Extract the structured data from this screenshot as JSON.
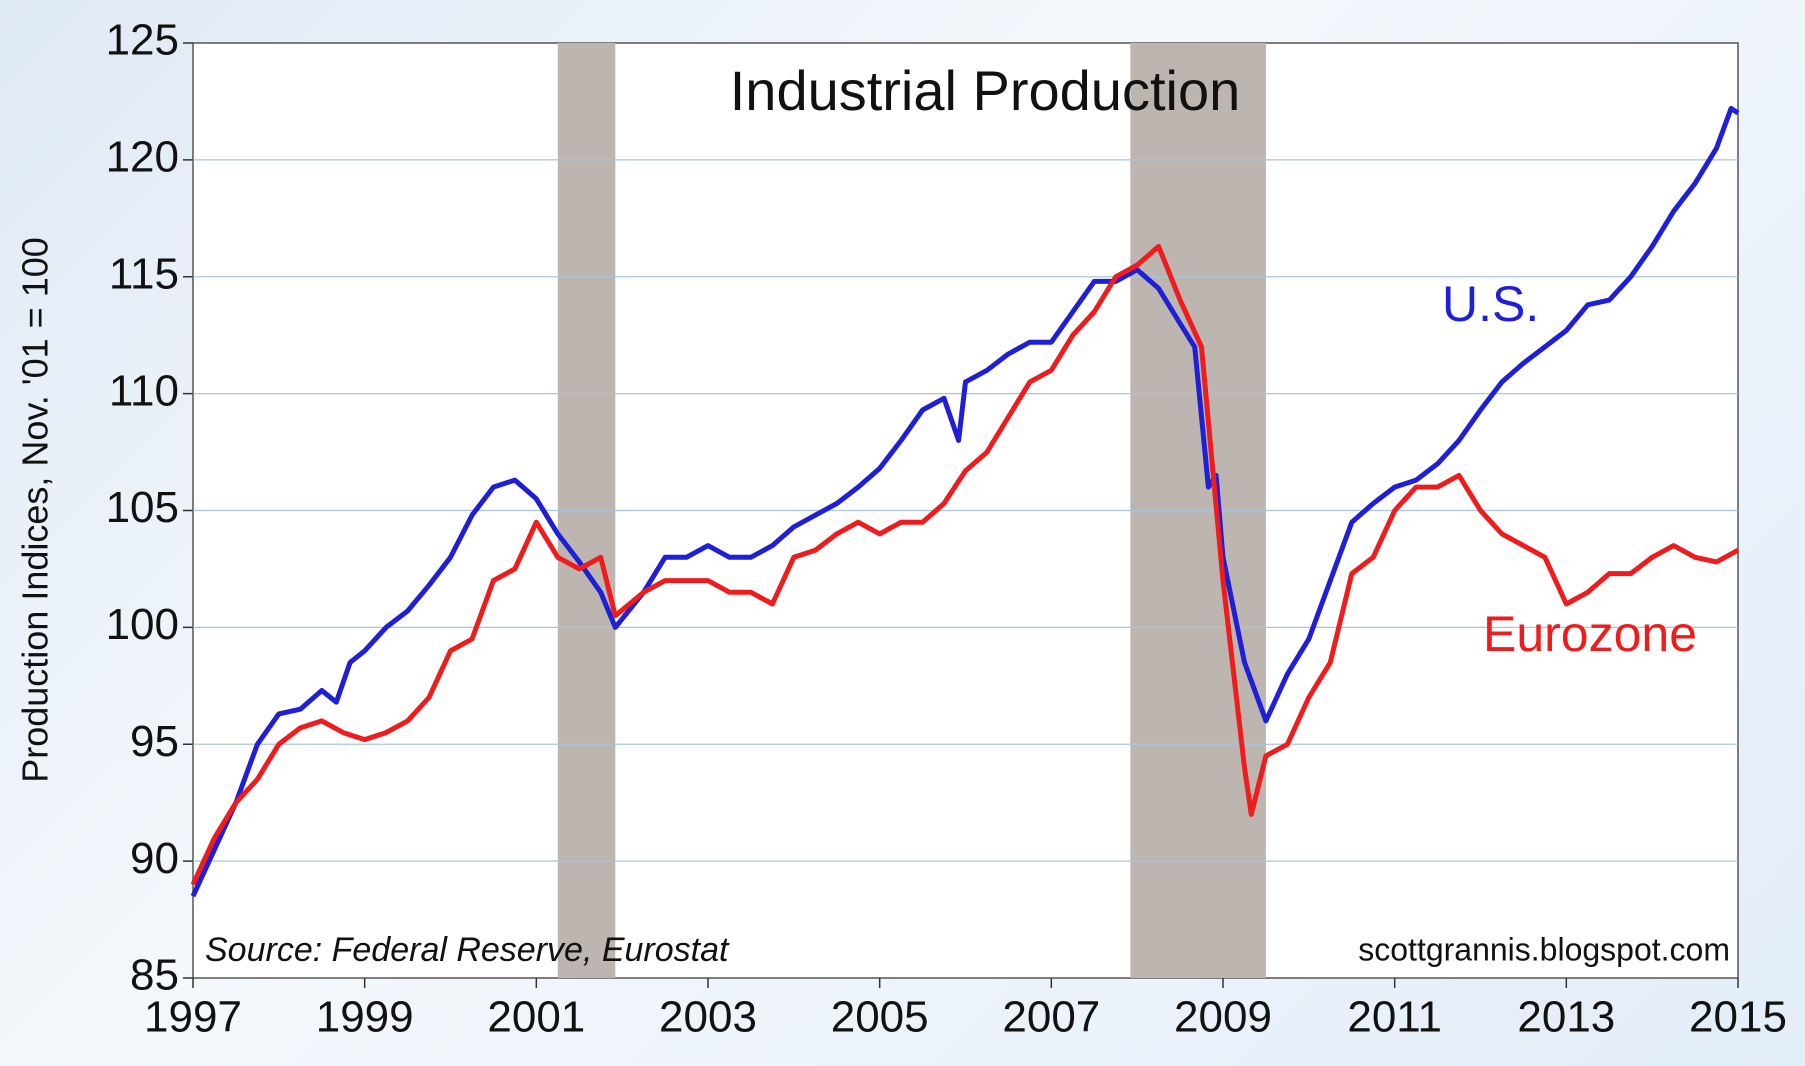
{
  "chart_data": {
    "type": "line",
    "title": "Industrial Production",
    "ylabel": "Production Indices, Nov. '01 = 100",
    "source": "Source: Federal Reserve, Eurostat",
    "credit": "scottgrannis.blogspot.com",
    "xlim": [
      1997,
      2015
    ],
    "xticks": [
      1997,
      1999,
      2001,
      2003,
      2005,
      2007,
      2009,
      2011,
      2013,
      2015
    ],
    "ylim": [
      85,
      125
    ],
    "yticks": [
      85,
      90,
      95,
      100,
      105,
      110,
      115,
      120,
      125
    ],
    "grid": true,
    "shaded_regions": [
      [
        2001.25,
        2001.92
      ],
      [
        2007.92,
        2009.5
      ]
    ],
    "shade_color": "#bdb6b0",
    "series": [
      {
        "name": "U.S.",
        "color": "#1f1fd6",
        "x": [
          1997.0,
          1997.25,
          1997.5,
          1997.75,
          1998.0,
          1998.25,
          1998.5,
          1998.67,
          1998.83,
          1999.0,
          1999.25,
          1999.5,
          1999.75,
          2000.0,
          2000.25,
          2000.5,
          2000.75,
          2001.0,
          2001.25,
          2001.5,
          2001.75,
          2001.92,
          2002.25,
          2002.5,
          2002.75,
          2003.0,
          2003.25,
          2003.5,
          2003.75,
          2004.0,
          2004.25,
          2004.5,
          2004.75,
          2005.0,
          2005.25,
          2005.5,
          2005.75,
          2005.92,
          2006.0,
          2006.25,
          2006.5,
          2006.75,
          2007.0,
          2007.25,
          2007.5,
          2007.75,
          2008.0,
          2008.25,
          2008.5,
          2008.67,
          2008.83,
          2008.92,
          2009.0,
          2009.25,
          2009.5,
          2009.75,
          2010.0,
          2010.25,
          2010.5,
          2010.75,
          2011.0,
          2011.25,
          2011.5,
          2011.75,
          2012.0,
          2012.25,
          2012.5,
          2012.75,
          2013.0,
          2013.25,
          2013.5,
          2013.75,
          2014.0,
          2014.25,
          2014.5,
          2014.75,
          2014.92,
          2015.0
        ],
        "values": [
          88.5,
          90.5,
          92.5,
          95,
          96.3,
          96.5,
          97.3,
          96.8,
          98.5,
          99,
          100,
          100.7,
          101.8,
          103,
          104.8,
          106,
          106.3,
          105.5,
          104,
          102.8,
          101.5,
          100,
          101.5,
          103,
          103,
          103.5,
          103,
          103,
          103.5,
          104.3,
          104.8,
          105.3,
          106,
          106.8,
          108,
          109.3,
          109.8,
          108,
          110.5,
          111,
          111.7,
          112.2,
          112.2,
          113.5,
          114.8,
          114.8,
          115.3,
          114.5,
          113,
          112,
          106,
          106.5,
          103,
          98.5,
          96,
          98,
          99.5,
          102,
          104.5,
          105.3,
          106,
          106.3,
          107,
          108,
          109.3,
          110.5,
          111.3,
          112,
          112.7,
          113.8,
          114,
          115,
          116.3,
          117.8,
          119,
          120.5,
          122.2,
          122
        ]
      },
      {
        "name": "Eurozone",
        "color": "#ee1c1c",
        "x": [
          1997.0,
          1997.25,
          1997.5,
          1997.75,
          1998.0,
          1998.25,
          1998.5,
          1998.75,
          1999.0,
          1999.25,
          1999.5,
          1999.75,
          2000.0,
          2000.25,
          2000.5,
          2000.75,
          2001.0,
          2001.25,
          2001.5,
          2001.75,
          2001.92,
          2002.25,
          2002.5,
          2002.75,
          2003.0,
          2003.25,
          2003.5,
          2003.75,
          2004.0,
          2004.25,
          2004.5,
          2004.75,
          2005.0,
          2005.25,
          2005.5,
          2005.75,
          2006.0,
          2006.25,
          2006.5,
          2006.75,
          2007.0,
          2007.25,
          2007.5,
          2007.75,
          2008.0,
          2008.25,
          2008.5,
          2008.75,
          2009.0,
          2009.25,
          2009.33,
          2009.5,
          2009.75,
          2010.0,
          2010.25,
          2010.5,
          2010.75,
          2011.0,
          2011.25,
          2011.5,
          2011.75,
          2012.0,
          2012.25,
          2012.5,
          2012.75,
          2013.0,
          2013.25,
          2013.5,
          2013.75,
          2014.0,
          2014.25,
          2014.5,
          2014.75,
          2015.0
        ],
        "values": [
          89,
          91,
          92.5,
          93.5,
          95,
          95.7,
          96,
          95.5,
          95.2,
          95.5,
          96,
          97,
          99,
          99.5,
          102,
          102.5,
          104.5,
          103,
          102.5,
          103,
          100.5,
          101.5,
          102,
          102,
          102,
          101.5,
          101.5,
          101,
          103,
          103.3,
          104,
          104.5,
          104,
          104.5,
          104.5,
          105.3,
          106.7,
          107.5,
          109,
          110.5,
          111,
          112.5,
          113.5,
          115,
          115.5,
          116.3,
          114,
          112,
          102,
          94,
          92,
          94.5,
          95,
          97,
          98.5,
          102.3,
          103,
          105,
          106,
          106,
          106.5,
          105,
          104,
          103.5,
          103,
          101,
          101.5,
          102.3,
          102.3,
          103,
          103.5,
          103,
          102.8,
          103.3
        ]
      }
    ]
  }
}
